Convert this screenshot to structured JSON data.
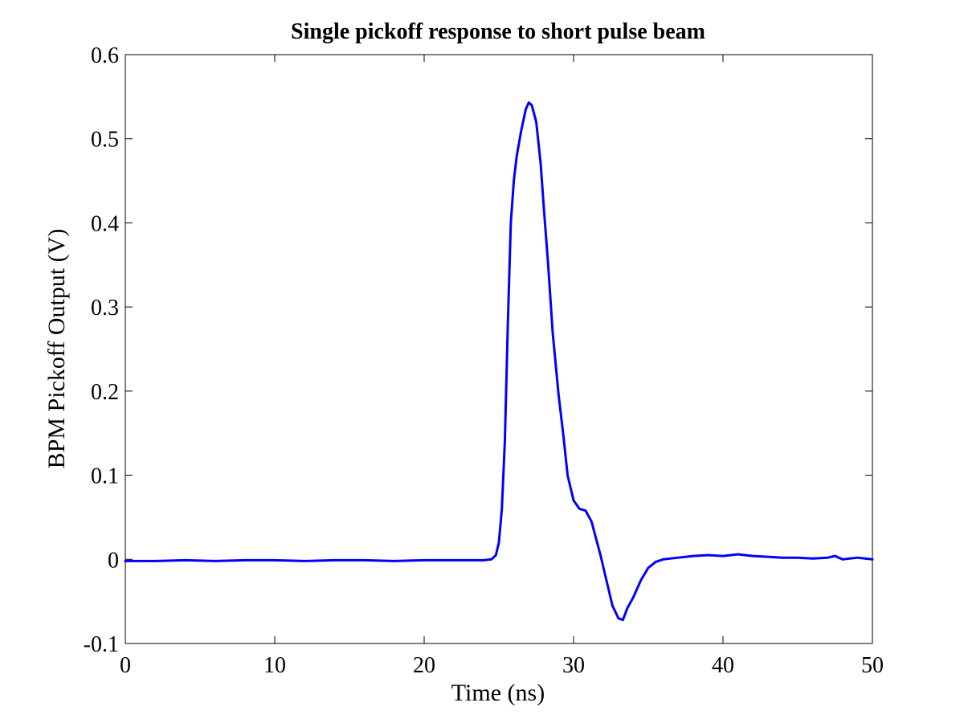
{
  "chart_data": {
    "type": "line",
    "title": "Single pickoff response to short pulse beam",
    "xlabel": "Time (ns)",
    "ylabel": "BPM Pickoff Output (V)",
    "xlim": [
      0,
      50
    ],
    "ylim": [
      -0.1,
      0.6
    ],
    "xticks": [
      0,
      10,
      20,
      30,
      40,
      50
    ],
    "yticks": [
      -0.1,
      0,
      0.1,
      0.2,
      0.3,
      0.4,
      0.5,
      0.6
    ],
    "xtick_labels": [
      "0",
      "10",
      "20",
      "30",
      "40",
      "50"
    ],
    "ytick_labels": [
      "-0.1",
      "0",
      "0.1",
      "0.2",
      "0.3",
      "0.4",
      "0.5",
      "0.6"
    ],
    "grid": false,
    "line_color": "#0000ff",
    "series": [
      {
        "x": [
          0,
          2,
          4,
          6,
          8,
          10,
          12,
          14,
          16,
          18,
          20,
          22,
          23,
          24,
          24.5,
          24.8,
          25.0,
          25.2,
          25.4,
          25.6,
          25.8,
          26.0,
          26.2,
          26.5,
          26.8,
          27.0,
          27.2,
          27.5,
          27.8,
          28.0,
          28.3,
          28.6,
          29.0,
          29.3,
          29.6,
          30.0,
          30.4,
          30.8,
          31.2,
          31.5,
          31.8,
          32.2,
          32.6,
          33.0,
          33.3,
          33.6,
          34.0,
          34.5,
          35.0,
          35.5,
          36.0,
          37.0,
          38.0,
          39.0,
          40.0,
          41.0,
          42.0,
          43.0,
          44.0,
          45.0,
          46.0,
          47.0,
          47.5,
          48.0,
          49.0,
          50.0
        ],
        "y": [
          -0.002,
          -0.002,
          -0.001,
          -0.002,
          -0.001,
          -0.001,
          -0.002,
          -0.001,
          -0.001,
          -0.002,
          -0.001,
          -0.001,
          -0.001,
          -0.001,
          0.0,
          0.005,
          0.02,
          0.06,
          0.14,
          0.28,
          0.4,
          0.45,
          0.48,
          0.51,
          0.535,
          0.543,
          0.54,
          0.52,
          0.47,
          0.42,
          0.35,
          0.27,
          0.195,
          0.15,
          0.1,
          0.07,
          0.06,
          0.058,
          0.045,
          0.025,
          0.005,
          -0.025,
          -0.055,
          -0.07,
          -0.072,
          -0.058,
          -0.045,
          -0.025,
          -0.01,
          -0.003,
          0.0,
          0.002,
          0.004,
          0.005,
          0.004,
          0.006,
          0.004,
          0.003,
          0.002,
          0.002,
          0.001,
          0.002,
          0.004,
          0.0,
          0.002,
          0.0
        ]
      }
    ]
  }
}
